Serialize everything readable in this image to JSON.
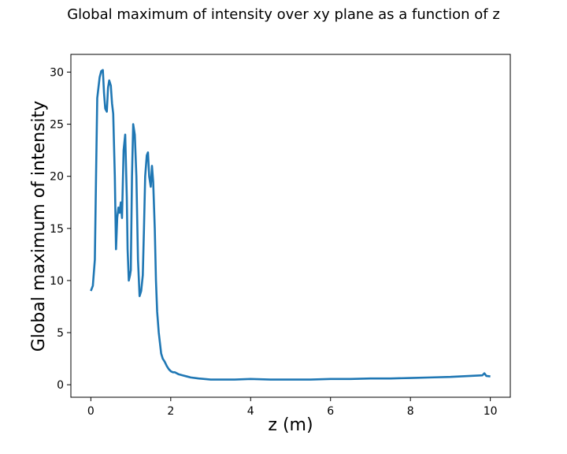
{
  "figure": {
    "title": "Global maximum of intensity over xy plane as a function of z"
  },
  "chart_data": {
    "type": "line",
    "title": "Global maximum of intensity over xy plane as a function of z",
    "xlabel": "z (m)",
    "ylabel": "Global maximum of intensity",
    "xlim": [
      -0.5,
      10.5
    ],
    "ylim": [
      -1.2,
      31.7
    ],
    "xticks": [
      0,
      2,
      4,
      6,
      8,
      10
    ],
    "yticks": [
      0,
      5,
      10,
      15,
      20,
      25,
      30
    ],
    "grid": false,
    "line_color": "#1f77b4",
    "series": [
      {
        "x": [
          0.0,
          0.05,
          0.1,
          0.13,
          0.16,
          0.19,
          0.22,
          0.26,
          0.3,
          0.33,
          0.36,
          0.4,
          0.43,
          0.46,
          0.5,
          0.53,
          0.56,
          0.6,
          0.63,
          0.66,
          0.69,
          0.72,
          0.75,
          0.78,
          0.82,
          0.86,
          0.9,
          0.92,
          0.95,
          0.98,
          1.0,
          1.03,
          1.06,
          1.1,
          1.14,
          1.18,
          1.22,
          1.26,
          1.3,
          1.33,
          1.36,
          1.4,
          1.43,
          1.46,
          1.5,
          1.53,
          1.56,
          1.6,
          1.63,
          1.66,
          1.7,
          1.73,
          1.76,
          1.8,
          1.85,
          1.9,
          1.95,
          2.0,
          2.05,
          2.1,
          2.15,
          2.2,
          2.3,
          2.4,
          2.5,
          2.7,
          3.0,
          3.3,
          3.6,
          4.0,
          4.5,
          5.0,
          5.5,
          6.0,
          6.5,
          7.0,
          7.5,
          8.0,
          8.5,
          9.0,
          9.5,
          9.8,
          9.85,
          9.9,
          10.0
        ],
        "y": [
          9.0,
          9.5,
          12.0,
          20.0,
          27.5,
          28.5,
          29.5,
          30.1,
          30.2,
          28.0,
          26.5,
          26.2,
          28.5,
          29.2,
          28.7,
          27.0,
          26.0,
          20.0,
          13.0,
          16.0,
          17.0,
          16.5,
          17.5,
          16.0,
          22.5,
          24.0,
          18.0,
          13.0,
          10.0,
          10.5,
          11.0,
          20.0,
          25.0,
          24.0,
          20.0,
          12.0,
          8.5,
          9.0,
          10.5,
          15.0,
          20.0,
          22.0,
          22.3,
          20.0,
          19.0,
          21.0,
          19.5,
          15.0,
          10.0,
          7.0,
          5.0,
          4.0,
          3.0,
          2.5,
          2.2,
          1.8,
          1.5,
          1.3,
          1.2,
          1.2,
          1.1,
          1.0,
          0.9,
          0.8,
          0.7,
          0.6,
          0.5,
          0.5,
          0.5,
          0.55,
          0.5,
          0.5,
          0.5,
          0.55,
          0.55,
          0.6,
          0.6,
          0.65,
          0.7,
          0.75,
          0.85,
          0.9,
          1.1,
          0.85,
          0.8
        ]
      }
    ]
  }
}
